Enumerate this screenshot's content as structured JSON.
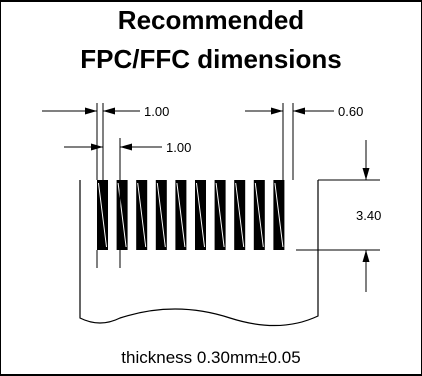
{
  "title": {
    "line1": "Recommended",
    "line2": "FPC/FFC dimensions"
  },
  "dimensions": {
    "pitch": "1.00",
    "contact_width": "1.00",
    "edge_margin": "0.60",
    "contact_length": "3.40"
  },
  "caption": "thickness 0.30mm±0.05",
  "diagram": {
    "contact_count": 10
  }
}
